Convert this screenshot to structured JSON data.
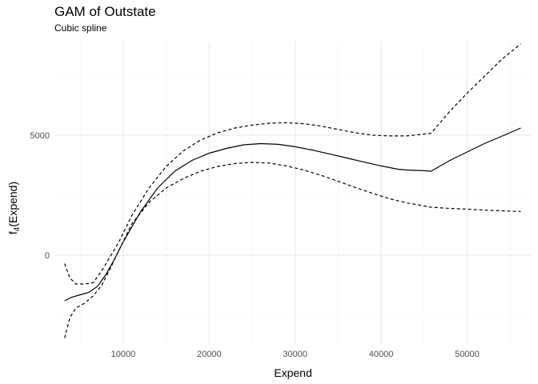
{
  "chart_data": {
    "type": "line",
    "title": "GAM of Outstate",
    "subtitle": "Cubic spline",
    "xlabel": "Expend",
    "ylabel_main": "f",
    "ylabel_sub": "4",
    "ylabel_rest": "(Expend)",
    "xlim": [
      2000,
      57500
    ],
    "ylim": [
      -3700,
      8900
    ],
    "x_ticks": [
      10000,
      20000,
      30000,
      40000,
      50000
    ],
    "y_ticks": [
      0,
      5000
    ],
    "x_minor_ticks": [
      5000,
      15000,
      25000,
      35000,
      45000,
      55000
    ],
    "y_minor_ticks": [
      -2500,
      2500,
      7500
    ],
    "grid": true,
    "series": [
      {
        "style": "solid",
        "x": [
          3186,
          4000,
          5000,
          6000,
          7000,
          8000,
          9000,
          10000,
          12000,
          14000,
          16000,
          18000,
          20000,
          22000,
          24000,
          26000,
          28000,
          30000,
          32000,
          34000,
          36000,
          38000,
          40000,
          42000,
          43000,
          45000,
          45800,
          48000,
          50000,
          52000,
          54000,
          56233
        ],
        "y": [
          -1900,
          -1750,
          -1650,
          -1550,
          -1300,
          -800,
          -150,
          550,
          1800,
          2800,
          3500,
          3950,
          4250,
          4450,
          4600,
          4650,
          4620,
          4520,
          4380,
          4220,
          4050,
          3880,
          3720,
          3580,
          3550,
          3520,
          3500,
          3950,
          4300,
          4650,
          4950,
          5300
        ]
      },
      {
        "style": "dashed",
        "x": [
          3186,
          3800,
          4500,
          5500,
          6500,
          7500,
          8500,
          9500,
          11000,
          13000,
          15000,
          17000,
          19000,
          21000,
          23000,
          25000,
          27000,
          29000,
          31000,
          33000,
          35000,
          37000,
          39000,
          41000,
          43000,
          45800,
          48000,
          50000,
          52000,
          54000,
          56233
        ],
        "y": [
          -350,
          -950,
          -1200,
          -1200,
          -1150,
          -650,
          -50,
          550,
          1650,
          2800,
          3700,
          4350,
          4800,
          5100,
          5300,
          5420,
          5500,
          5520,
          5480,
          5380,
          5240,
          5100,
          5000,
          4970,
          4970,
          5080,
          6000,
          6750,
          7450,
          8150,
          8800
        ]
      },
      {
        "style": "dashed",
        "x": [
          3186,
          3800,
          4500,
          5500,
          6500,
          7500,
          8500,
          9500,
          11000,
          13000,
          15000,
          17000,
          19000,
          21000,
          23000,
          25000,
          27000,
          29000,
          31000,
          33000,
          35000,
          37000,
          39000,
          41000,
          43000,
          45800,
          48000,
          50000,
          52000,
          54000,
          56233
        ],
        "y": [
          -3450,
          -2600,
          -2200,
          -2000,
          -1700,
          -1250,
          -550,
          200,
          1300,
          2200,
          2800,
          3200,
          3500,
          3700,
          3820,
          3870,
          3840,
          3720,
          3550,
          3330,
          3080,
          2820,
          2580,
          2350,
          2180,
          2000,
          1950,
          1920,
          1880,
          1850,
          1820
        ]
      }
    ]
  }
}
